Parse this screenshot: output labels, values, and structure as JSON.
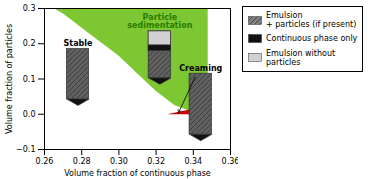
{
  "chart_data": {
    "type": "area",
    "xlabel": "Volume fraction of continuous phase",
    "ylabel": "Volume fraction of particles",
    "xlim": [
      0.26,
      0.36
    ],
    "ylim": [
      -0.1,
      0.3
    ],
    "xticks": [
      0.26,
      0.28,
      {
        "value": 0.3,
        "label": "0.30"
      },
      0.32,
      0.34,
      0.36
    ],
    "yticks": [
      {
        "value": -0.1,
        "label": "−0.1"
      },
      {
        "value": 0,
        "label": "0.0"
      },
      0.1,
      0.2,
      0.3
    ],
    "background": "#ffffff",
    "color": "#7dc832",
    "x": [
      0.26,
      0.265,
      0.27,
      0.275,
      0.28,
      0.29,
      0.3,
      0.31,
      0.32,
      0.33,
      0.34,
      0.348
    ],
    "values": [
      0.3,
      0.3,
      0.285,
      0.265,
      0.245,
      0.205,
      0.165,
      0.115,
      0.065,
      0.025,
      0.005,
      0.0
    ],
    "regions": [
      {
        "x": [
          0.326,
          0.348,
          0.348
        ],
        "y": [
          0.0,
          0.0,
          0.025
        ],
        "color": "#cc0000"
      }
    ],
    "vial_width": 0.012,
    "tip_height": 0.018,
    "vial_color": "#606060",
    "tip_color": "#111111",
    "light_band_color": "#d0d0d0",
    "dark_band_color": "#111111",
    "vials": [
      {
        "label": "Stable",
        "label_color": "black",
        "x": 0.278,
        "y_bottom": 0.025,
        "y_top": 0.185
      },
      {
        "label": "Particle\nsedimentation",
        "label_color": "#2a7d00",
        "x": 0.322,
        "y_bottom": 0.085,
        "y_top": 0.235,
        "light_band": 0.04,
        "dark_band": 0.015
      },
      {
        "label": "Creaming",
        "label_color": "black",
        "x": 0.344,
        "y_bottom": -0.075,
        "y_top": 0.115
      }
    ],
    "arrow": {
      "x1": 0.341,
      "y1": 0.105,
      "x2": 0.332,
      "y2": 0.004
    },
    "legend": "right",
    "legend_entries": [
      {
        "name": "Emulsion\n+ particles (if present)",
        "color": "#808080",
        "hatch": true
      },
      {
        "name": "Continuous phase only",
        "color": "#111111"
      },
      {
        "name": "Emulsion without\nparticles",
        "color": "#d0d0d0"
      }
    ]
  }
}
